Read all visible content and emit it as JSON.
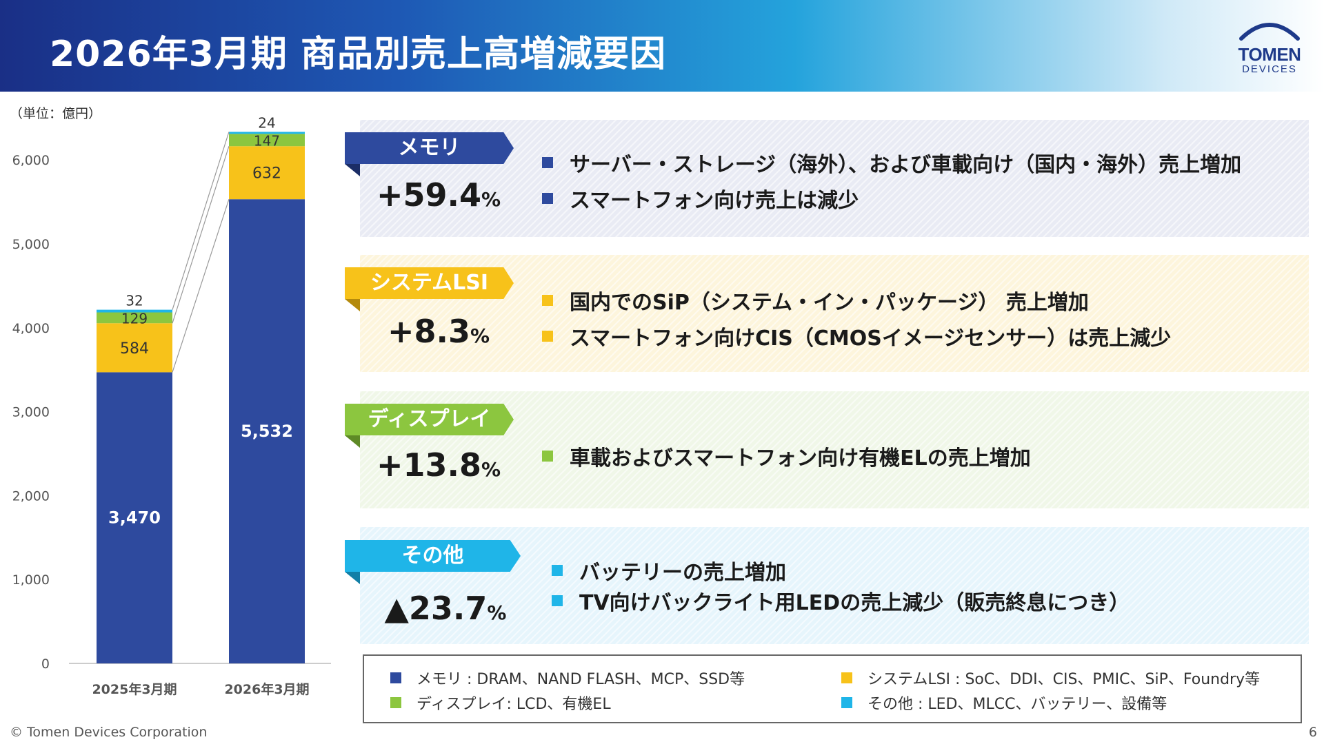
{
  "header": {
    "title": "2026年3月期 商品別売上高増減要因",
    "logo_main": "TOMEN",
    "logo_sub": "DEVICES"
  },
  "colors": {
    "memory": "#2e4a9e",
    "system_lsi": "#f7c21a",
    "display": "#8cc63f",
    "other": "#1fb5e8"
  },
  "chart_data": {
    "type": "bar",
    "stacked": true,
    "unit_label": "（単位：億円）",
    "categories": [
      "2025年3月期",
      "2026年3月期"
    ],
    "series": [
      {
        "key": "memory",
        "values": [
          3470,
          5532
        ],
        "labels": [
          "3,470",
          "5,532"
        ]
      },
      {
        "key": "system_lsi",
        "values": [
          584,
          632
        ],
        "labels": [
          "584",
          "632"
        ]
      },
      {
        "key": "display",
        "values": [
          129,
          147
        ],
        "labels": [
          "129",
          "147"
        ]
      },
      {
        "key": "other",
        "values": [
          32,
          24
        ],
        "labels": [
          "32",
          "24"
        ]
      }
    ],
    "ylim": [
      0,
      6300
    ],
    "yticks": [
      0,
      1000,
      2000,
      3000,
      4000,
      5000,
      6000
    ],
    "ytick_labels": [
      "0",
      "1,000",
      "2,000",
      "3,000",
      "4,000",
      "5,000",
      "6,000"
    ],
    "grid": false,
    "connector_lines": true
  },
  "categories": [
    {
      "key": "mem",
      "tag": "メモリ",
      "pct_value": "+59.4",
      "pct_symbol": "%",
      "bullets": [
        "サーバー・ストレージ（海外）、および車載向け（国内・海外）売上増加",
        "スマートフォン向け売上は減少"
      ]
    },
    {
      "key": "lsi",
      "tag": "システムLSI",
      "pct_value": "+8.3",
      "pct_symbol": "%",
      "bullets": [
        "国内でのSiP（システム・イン・パッケージ） 売上増加",
        "スマートフォン向けCIS（CMOSイメージセンサー）は売上減少"
      ]
    },
    {
      "key": "dsp",
      "tag": "ディスプレイ",
      "pct_value": "+13.8",
      "pct_symbol": "%",
      "bullets": [
        "車載およびスマートフォン向け有機ELの売上増加"
      ]
    },
    {
      "key": "oth",
      "tag": "その他",
      "pct_value": "▲23.7",
      "pct_symbol": "%",
      "bullets": [
        "バッテリーの売上増加",
        "TV向けバックライト用LEDの売上減少（販売終息につき）"
      ]
    }
  ],
  "legend": [
    {
      "label": "メモリ : DRAM、NAND FLASH、MCP、SSD等"
    },
    {
      "label": "システムLSI : SoC、DDI、CIS、PMIC、SiP、Foundry等"
    },
    {
      "label": "ディスプレイ: LCD、有機EL"
    },
    {
      "label": "その他 : LED、MLCC、バッテリー、設備等"
    }
  ],
  "footer": {
    "copyright": "© Tomen Devices Corporation",
    "page": "6"
  }
}
